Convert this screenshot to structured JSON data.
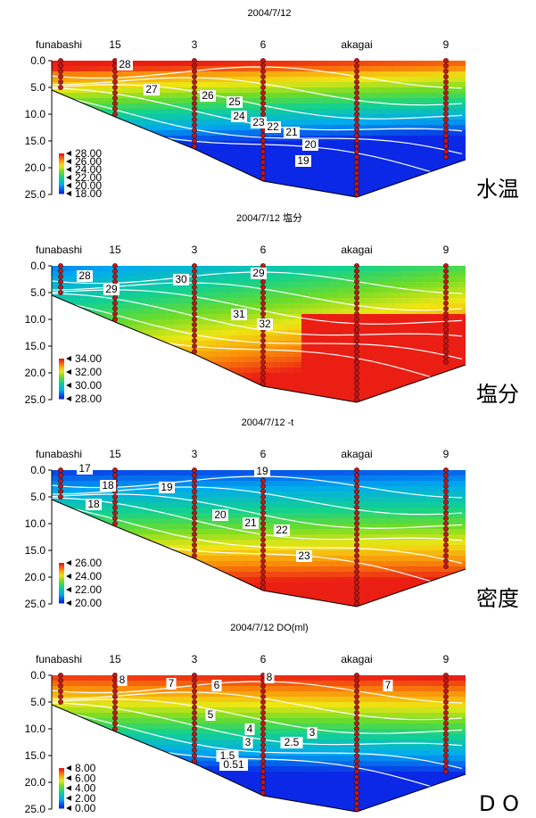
{
  "chart_data": [
    {
      "type": "heatmap",
      "title": "2004/7/12",
      "side_label": "水温",
      "stations": [
        "funabashi",
        "15",
        "3",
        "6",
        "akagai",
        "9"
      ],
      "y_ticks": [
        "0.0",
        "5.0",
        "10.0",
        "15.0",
        "20.0",
        "25.0"
      ],
      "ylim": [
        0,
        25
      ],
      "legend_ticks": [
        "28.00",
        "26.00",
        "24.00",
        "22.00",
        "20.00",
        "18.00"
      ],
      "colorbar_range": [
        18,
        28
      ],
      "contour_labels": [
        "28",
        "27",
        "26",
        "25",
        "24",
        "23",
        "22",
        "21",
        "20",
        "19"
      ]
    },
    {
      "type": "heatmap",
      "title": "2004/7/12 塩分",
      "side_label": "塩分",
      "stations": [
        "funabashi",
        "15",
        "3",
        "6",
        "akagai",
        "9"
      ],
      "y_ticks": [
        "0.0",
        "5.0",
        "10.0",
        "15.0",
        "20.0",
        "25.0"
      ],
      "ylim": [
        0,
        25
      ],
      "legend_ticks": [
        "34.00",
        "32.00",
        "30.00",
        "28.00"
      ],
      "colorbar_range": [
        28,
        34
      ],
      "contour_labels": [
        "28",
        "29",
        "30",
        "29",
        "31",
        "32"
      ]
    },
    {
      "type": "heatmap",
      "title": "2004/7/12 -t",
      "side_label": "密度",
      "stations": [
        "funabashi",
        "15",
        "3",
        "6",
        "akagai",
        "9"
      ],
      "y_ticks": [
        "0.0",
        "5.0",
        "10.0",
        "15.0",
        "20.0",
        "25.0"
      ],
      "ylim": [
        0,
        25
      ],
      "legend_ticks": [
        "26.00",
        "24.00",
        "22.00",
        "20.00"
      ],
      "colorbar_range": [
        20,
        26
      ],
      "contour_labels": [
        "17",
        "18",
        "18",
        "19",
        "19",
        "20",
        "21",
        "22",
        "23"
      ]
    },
    {
      "type": "heatmap",
      "title": "2004/7/12 DO(ml)",
      "side_label": "D O",
      "stations": [
        "funabashi",
        "15",
        "3",
        "6",
        "akagai",
        "9"
      ],
      "y_ticks": [
        "0.0",
        "5.0",
        "10.0",
        "15.0",
        "20.0",
        "25.0"
      ],
      "ylim": [
        0,
        25
      ],
      "legend_ticks": [
        "8.00",
        "6.00",
        "4.00",
        "2.00",
        "0.00"
      ],
      "colorbar_range": [
        0,
        8
      ],
      "contour_labels": [
        "8",
        "7",
        "6",
        "8",
        "7",
        "5",
        "4",
        "3",
        "2.5",
        "3",
        "1.5",
        "0.51"
      ]
    }
  ]
}
